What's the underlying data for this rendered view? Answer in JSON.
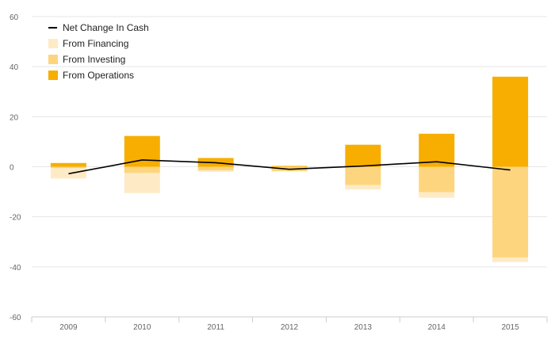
{
  "chart_data": {
    "type": "bar",
    "stacked": true,
    "title": "",
    "xlabel": "",
    "ylabel": "",
    "categories": [
      "2009",
      "2010",
      "2011",
      "2012",
      "2013",
      "2014",
      "2015"
    ],
    "ylim": [
      -60,
      60
    ],
    "yticks": [
      -60,
      -40,
      -20,
      0,
      20,
      40,
      60
    ],
    "grid": true,
    "legend_position": "top-left",
    "series": [
      {
        "name": "From Operations",
        "kind": "bar",
        "color": "#F7AE00",
        "values": [
          1.5,
          12.3,
          3.5,
          0.3,
          8.8,
          13.2,
          36.0
        ]
      },
      {
        "name": "From Investing",
        "kind": "bar",
        "color": "#FDD57E",
        "values": [
          -0.5,
          -2.5,
          -1.5,
          -1.8,
          -7.3,
          -10.2,
          -36.3
        ]
      },
      {
        "name": "From Financing",
        "kind": "bar",
        "color": "#FEEBC6",
        "values": [
          -4.2,
          -8.0,
          -0.5,
          0.2,
          -1.8,
          -2.2,
          -1.8
        ]
      },
      {
        "name": "Net Change In Cash",
        "kind": "line",
        "color": "#000000",
        "values": [
          -2.8,
          2.7,
          1.6,
          -1.0,
          0.3,
          2.0,
          -1.3
        ]
      }
    ],
    "legend": [
      {
        "name": "Net Change In Cash",
        "symbol": "line",
        "color": "#000000"
      },
      {
        "name": "From Financing",
        "symbol": "square",
        "color": "#FEEBC6"
      },
      {
        "name": "From Investing",
        "symbol": "square",
        "color": "#FDD57E"
      },
      {
        "name": "From Operations",
        "symbol": "square",
        "color": "#F7AE00"
      }
    ]
  }
}
